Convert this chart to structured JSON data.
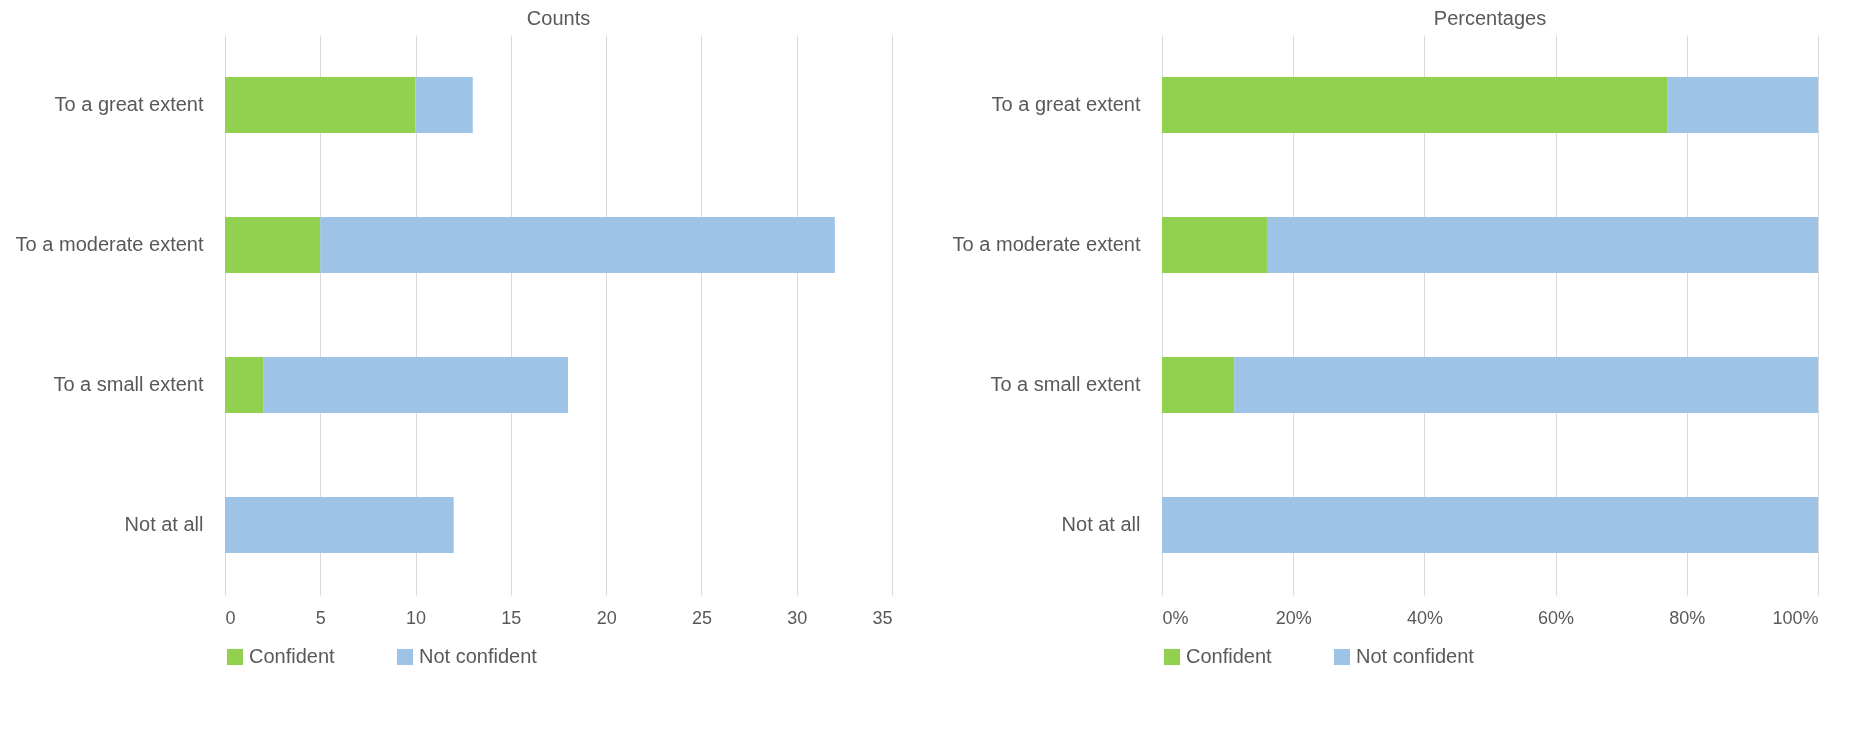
{
  "chart_data": [
    {
      "type": "bar",
      "title": "Counts",
      "orientation": "horizontal",
      "stacked": true,
      "categories": [
        "To a great extent",
        "To a moderate extent",
        "To a small extent",
        "Not at all"
      ],
      "series": [
        {
          "name": "Confident",
          "color": "#92d050",
          "values": [
            10,
            5,
            2,
            0
          ]
        },
        {
          "name": "Not confident",
          "color": "#9dc3e6",
          "values": [
            3,
            27,
            16,
            12
          ]
        }
      ],
      "xlim": [
        0,
        35
      ],
      "xticks": [
        0,
        5,
        10,
        15,
        20,
        25,
        30,
        35
      ],
      "grid": "x",
      "legend": "bottom"
    },
    {
      "type": "bar",
      "title": "Percentages",
      "orientation": "horizontal",
      "stacked": true,
      "categories": [
        "To a great extent",
        "To a moderate extent",
        "To a small extent",
        "Not at all"
      ],
      "series": [
        {
          "name": "Confident",
          "color": "#92d050",
          "values": [
            77,
            16,
            11,
            0
          ]
        },
        {
          "name": "Not confident",
          "color": "#9dc3e6",
          "values": [
            23,
            84,
            89,
            100
          ]
        }
      ],
      "xlim": [
        0,
        100
      ],
      "xticks": [
        {
          "value": 0,
          "label": "0%"
        },
        {
          "value": 20,
          "label": "20%"
        },
        {
          "value": 40,
          "label": "40%"
        },
        {
          "value": 60,
          "label": "60%"
        },
        {
          "value": 80,
          "label": "80%"
        },
        {
          "value": 100,
          "label": "100%"
        }
      ],
      "grid": "x",
      "legend": "bottom"
    }
  ]
}
